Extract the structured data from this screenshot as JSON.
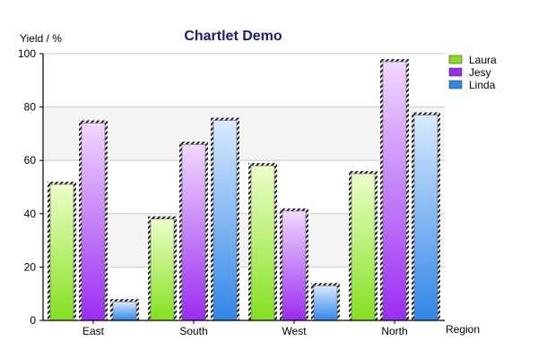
{
  "chart_data": {
    "type": "bar",
    "title": "Chartlet Demo",
    "title_color": "#1a1a7a",
    "ylabel": "Yield / %",
    "xlabel": "Region",
    "categories": [
      "East",
      "South",
      "West",
      "North"
    ],
    "ylim": [
      0,
      100
    ],
    "y_ticks": [
      "0",
      "20",
      "40",
      "60",
      "80",
      "100"
    ],
    "grid": true,
    "legend_position": "top-right",
    "series": [
      {
        "name": "Laura",
        "values": [
          51,
          38,
          58,
          55
        ],
        "color_light": "#ecffc8",
        "color_dark": "#84e020"
      },
      {
        "name": "Jesy",
        "values": [
          74,
          66,
          41,
          97
        ],
        "color_light": "#f0d8ff",
        "color_dark": "#9a2cf0"
      },
      {
        "name": "Linda",
        "values": [
          7,
          75,
          13,
          77
        ],
        "color_light": "#d8eaff",
        "color_dark": "#2f86e8"
      }
    ]
  }
}
